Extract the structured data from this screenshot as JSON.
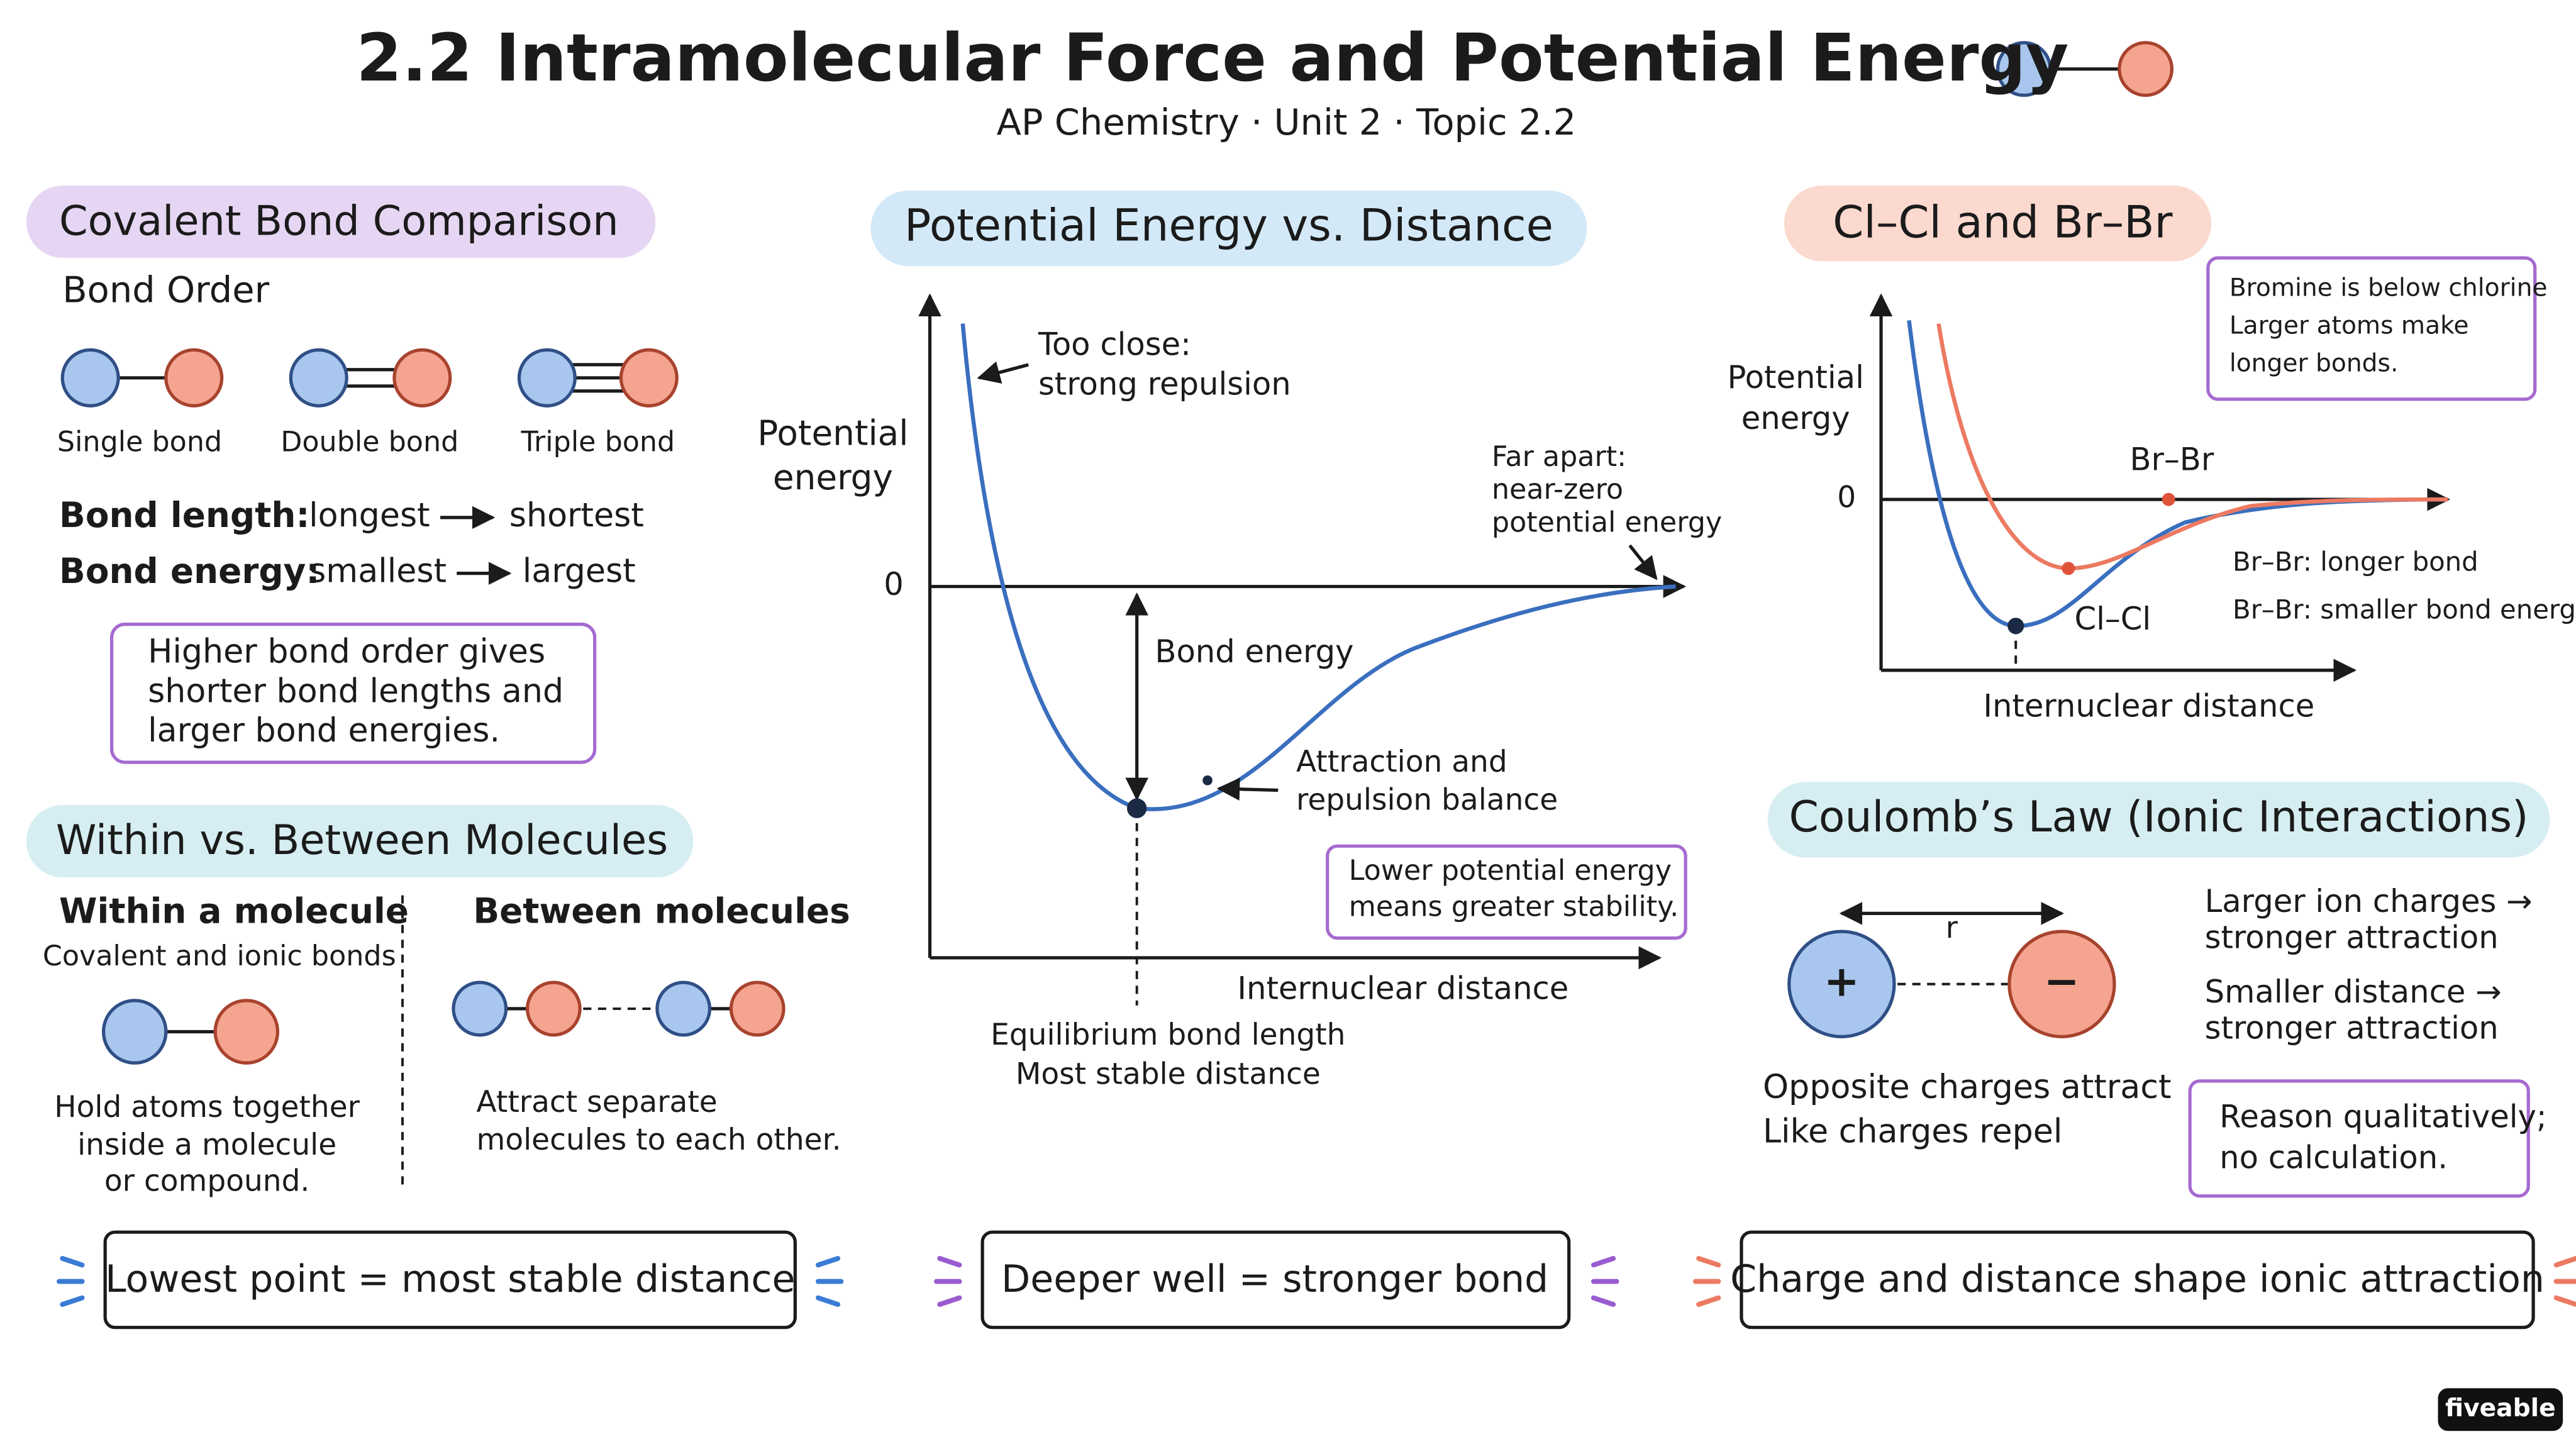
{
  "header": {
    "title": "2.2  Intramolecular Force and Potential Energy",
    "subtitle": "AP Chemistry · Unit 2 · Topic 2.2"
  },
  "bond_comparison": {
    "heading": "Covalent Bond Comparison",
    "subheading": "Bond Order",
    "bonds": [
      "Single bond",
      "Double bond",
      "Triple bond"
    ],
    "rows": [
      {
        "label": "Bond length:",
        "from": "longest",
        "to": "shortest"
      },
      {
        "label": "Bond energy:",
        "from": "smallest",
        "to": "largest"
      }
    ],
    "note": [
      "Higher bond order gives",
      "shorter bond lengths and",
      "larger bond energies."
    ]
  },
  "within_between": {
    "heading": "Within vs. Between Molecules",
    "within": {
      "title": "Within a molecule",
      "subtitle": "Covalent and ionic bonds",
      "text": [
        "Hold atoms together",
        "inside a molecule",
        "or compound."
      ]
    },
    "between": {
      "title": "Between molecules",
      "text": [
        "Attract separate",
        "molecules to each other."
      ]
    }
  },
  "pe_plot": {
    "heading": "Potential Energy vs. Distance",
    "y_label": [
      "Potential",
      "energy"
    ],
    "zero": "0",
    "x_label": "Internuclear distance",
    "too_close": [
      "Too close:",
      "strong repulsion"
    ],
    "far_apart": [
      "Far apart:",
      "near-zero",
      "potential energy"
    ],
    "bond_energy": "Bond energy",
    "balance": [
      "Attraction and",
      "repulsion balance"
    ],
    "note": [
      "Lower potential energy",
      "means greater stability."
    ],
    "equilibrium": [
      "Equilibrium bond length",
      "Most stable distance"
    ]
  },
  "halogens": {
    "heading": "Cl–Cl and Br–Br",
    "note": [
      "Bromine is below chlorine",
      "Larger atoms make",
      "longer bonds."
    ],
    "y_label": [
      "Potential",
      "energy"
    ],
    "zero": "0",
    "br_label": "Br–Br",
    "cl_label": "Cl–Cl",
    "facts": [
      "Br–Br: longer bond",
      "Br–Br: smaller bond energy"
    ],
    "x_label": "Internuclear distance"
  },
  "coulomb": {
    "heading": "Coulomb’s Law (Ionic Interactions)",
    "r": "r",
    "plus": "+",
    "minus": "−",
    "rules": [
      "Larger ion charges →",
      "stronger attraction",
      "Smaller distance →",
      "stronger attraction"
    ],
    "charges": [
      "Opposite charges attract",
      "Like charges repel"
    ],
    "note": [
      "Reason qualitatively;",
      "no calculation."
    ]
  },
  "footer": [
    "Lowest point = most stable distance",
    "Deeper well = stronger bond",
    "Charge and distance shape ionic attraction"
  ],
  "logo": "fiveable"
}
